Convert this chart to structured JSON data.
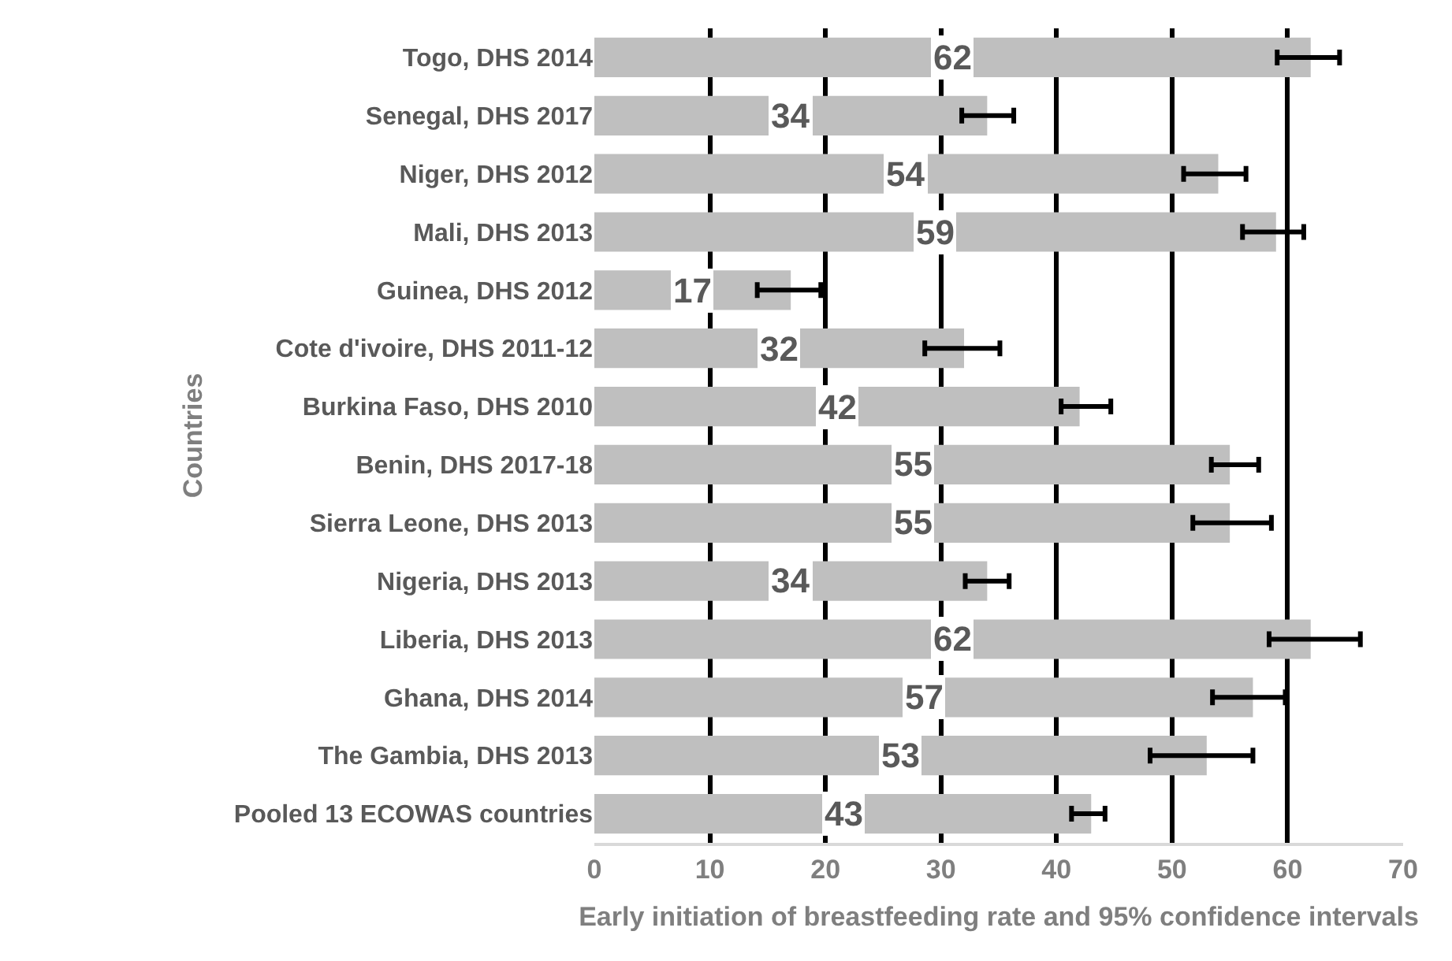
{
  "chart_data": {
    "type": "bar",
    "orientation": "horizontal",
    "categories": [
      "Togo, DHS 2014",
      "Senegal, DHS 2017",
      "Niger, DHS 2012",
      "Mali, DHS 2013",
      "Guinea, DHS 2012",
      "Cote d'ivoire, DHS 2011-12",
      "Burkina Faso, DHS 2010",
      "Benin, DHS 2017-18",
      "Sierra Leone, DHS 2013",
      "Nigeria, DHS 2013",
      "Liberia, DHS 2013",
      "Ghana, DHS 2014",
      "The Gambia, DHS 2013",
      "Pooled 13 ECOWAS countries"
    ],
    "values": [
      62,
      34,
      54,
      59,
      17,
      32,
      42,
      55,
      55,
      34,
      62,
      57,
      53,
      43
    ],
    "errors": [
      [
        59.1,
        64.5
      ],
      [
        31.8,
        36.3
      ],
      [
        51.0,
        56.4
      ],
      [
        56.1,
        61.4
      ],
      [
        14.1,
        19.6
      ],
      [
        28.6,
        35.1
      ],
      [
        40.4,
        44.7
      ],
      [
        53.4,
        57.5
      ],
      [
        51.8,
        58.6
      ],
      [
        32.1,
        35.9
      ],
      [
        58.4,
        66.3
      ],
      [
        53.5,
        59.8
      ],
      [
        48.1,
        57.0
      ],
      [
        41.3,
        44.2
      ]
    ],
    "color": "#bfbfbf",
    "data_labels": true,
    "xlim": [
      0,
      70
    ],
    "xticks": [
      0,
      10,
      20,
      30,
      40,
      50,
      60,
      70
    ],
    "grid": "x",
    "xlabel": "Early initiation of breastfeeding rate and 95% confidence intervals",
    "ylabel": "Countries"
  }
}
